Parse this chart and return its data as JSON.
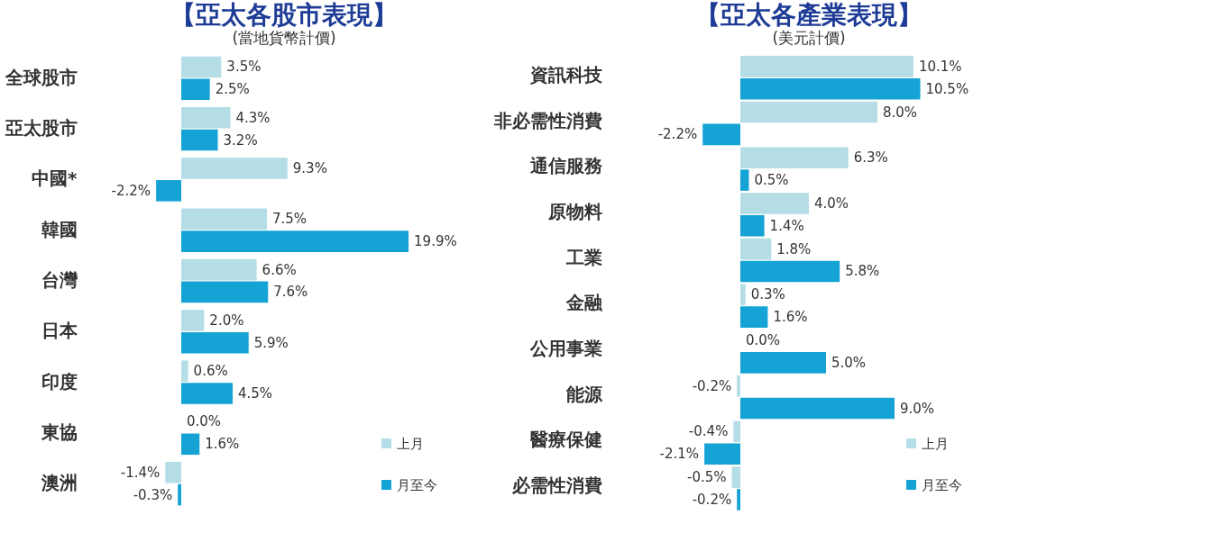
{
  "chart_data": [
    {
      "type": "bar",
      "orientation": "horizontal",
      "title": "【亞太各股市表現】",
      "subtitle": "(當地貨幣計價)",
      "legend": "bottom right",
      "categories": [
        "全球股市",
        "亞太股市",
        "中國*",
        "韓國",
        "台灣",
        "日本",
        "印度",
        "東協",
        "澳洲"
      ],
      "series": [
        {
          "name": "上月",
          "color": "#b4dde6",
          "values": [
            3.5,
            4.3,
            9.3,
            7.5,
            6.6,
            2.0,
            0.6,
            0.0,
            -1.4
          ],
          "value_labels": [
            "3.5%",
            "4.3%",
            "9.3%",
            "7.5%",
            "6.6%",
            "2.0%",
            "0.6%",
            "0.0%",
            "-1.4%"
          ]
        },
        {
          "name": "月至今",
          "color": "#14a3d4",
          "values": [
            2.5,
            3.2,
            -2.2,
            19.9,
            7.6,
            5.9,
            4.5,
            1.6,
            -0.3
          ],
          "value_labels": [
            "2.5%",
            "3.2%",
            "-2.2%",
            "19.9%",
            "7.6%",
            "5.9%",
            "4.5%",
            "1.6%",
            "-0.3%"
          ]
        }
      ]
    },
    {
      "type": "bar",
      "orientation": "horizontal",
      "title": "【亞太各產業表現】",
      "subtitle": "(美元計價)",
      "legend": "bottom right",
      "categories": [
        "資訊科技",
        "非必需性消費",
        "通信服務",
        "原物料",
        "工業",
        "金融",
        "公用事業",
        "能源",
        "醫療保健",
        "必需性消費"
      ],
      "series": [
        {
          "name": "上月",
          "color": "#b4dde6",
          "values": [
            10.1,
            8.0,
            6.3,
            4.0,
            1.8,
            0.3,
            0.0,
            -0.2,
            -0.4,
            -0.5
          ],
          "value_labels": [
            "10.1%",
            "8.0%",
            "6.3%",
            "4.0%",
            "1.8%",
            "0.3%",
            "0.0%",
            "-0.2%",
            "-0.4%",
            "-0.5%"
          ]
        },
        {
          "name": "月至今",
          "color": "#14a3d4",
          "values": [
            10.5,
            -2.2,
            0.5,
            1.4,
            5.8,
            1.6,
            5.0,
            9.0,
            -2.1,
            -0.2
          ],
          "value_labels": [
            "10.5%",
            "-2.2%",
            "0.5%",
            "1.4%",
            "5.8%",
            "1.6%",
            "5.0%",
            "9.0%",
            "-2.1%",
            "-0.2%"
          ]
        }
      ]
    }
  ]
}
